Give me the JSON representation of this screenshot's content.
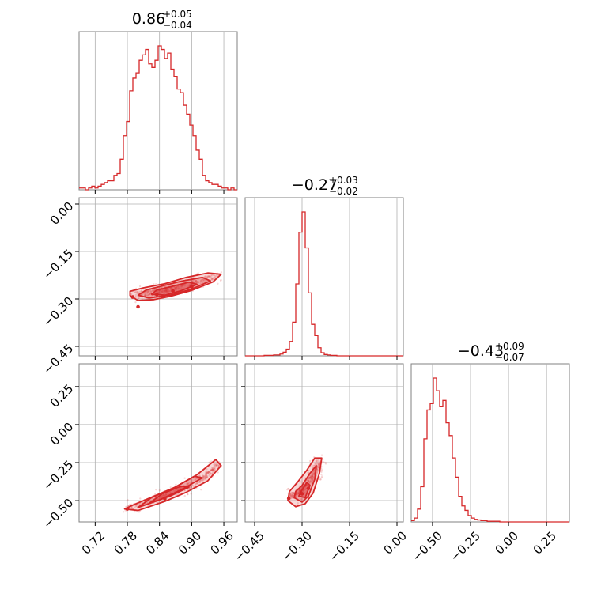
{
  "chart_data": {
    "type": "corner",
    "color": "#d62728",
    "grid": true,
    "params": [
      {
        "median": "0.86",
        "err_plus": "+0.05",
        "err_minus": "−0.04",
        "range": [
          0.69,
          0.985
        ],
        "ticks": [
          0.72,
          0.78,
          0.84,
          0.9,
          0.96
        ],
        "tick_labels": [
          "0.72",
          "0.78",
          "0.84",
          "0.90",
          "0.96"
        ],
        "hist_bins": [
          0.69,
          0.6959,
          0.7018,
          0.7077,
          0.7136,
          0.7195,
          0.7254,
          0.7313,
          0.7372,
          0.7431,
          0.749,
          0.7549,
          0.7608,
          0.7667,
          0.7726,
          0.7785,
          0.7844,
          0.7903,
          0.7962,
          0.8021,
          0.808,
          0.8139,
          0.8198,
          0.8257,
          0.8316,
          0.8375,
          0.8434,
          0.8493,
          0.8552,
          0.8611,
          0.867,
          0.8729,
          0.8788,
          0.8847,
          0.8906,
          0.8965,
          0.9024,
          0.9083,
          0.9142,
          0.9201,
          0.926,
          0.9319,
          0.9378,
          0.9437,
          0.9496,
          0.9555,
          0.9614,
          0.9673,
          0.9732,
          0.9791,
          0.985
        ],
        "hist_counts": [
          1,
          1,
          0,
          1,
          2,
          1,
          2,
          3,
          4,
          5,
          5,
          8,
          9,
          17,
          30,
          38,
          55,
          62,
          65,
          72,
          75,
          78,
          70,
          68,
          72,
          80,
          78,
          73,
          76,
          67,
          63,
          56,
          54,
          47,
          42,
          36,
          30,
          22,
          17,
          8,
          5,
          4,
          3,
          3,
          2,
          1,
          1,
          0,
          1,
          0
        ]
      },
      {
        "median": "−0.27",
        "err_plus": "+0.03",
        "err_minus": "−0.02",
        "range": [
          -0.48,
          0.02
        ],
        "ticks": [
          -0.45,
          -0.3,
          -0.15,
          0.0
        ],
        "tick_labels": [
          "−0.45",
          "−0.30",
          "−0.15",
          "0.00"
        ],
        "hist_bins": [
          -0.48,
          -0.47,
          -0.46,
          -0.45,
          -0.44,
          -0.43,
          -0.42,
          -0.41,
          -0.4,
          -0.39,
          -0.38,
          -0.37,
          -0.36,
          -0.35,
          -0.34,
          -0.33,
          -0.32,
          -0.31,
          -0.3,
          -0.29,
          -0.28,
          -0.27,
          -0.26,
          -0.25,
          -0.24,
          -0.23,
          -0.22,
          -0.21,
          -0.2,
          -0.19,
          -0.18,
          -0.17,
          -0.16,
          -0.15,
          -0.14,
          -0.13,
          -0.12,
          -0.11,
          -0.1,
          -0.09,
          -0.08,
          -0.07,
          -0.06,
          -0.05,
          -0.04,
          -0.03,
          -0.02,
          -0.01,
          0.0,
          0.01,
          0.02
        ],
        "hist_counts": [
          0,
          0,
          0,
          0,
          0,
          0,
          1,
          1,
          1,
          2,
          2,
          4,
          8,
          15,
          32,
          75,
          160,
          275,
          320,
          240,
          140,
          70,
          45,
          18,
          7,
          3,
          2,
          1,
          1,
          0,
          0,
          0,
          0,
          0,
          0,
          0,
          0,
          0,
          0,
          0,
          0,
          0,
          0,
          0,
          0,
          0,
          0,
          0,
          0,
          0
        ]
      },
      {
        "median": "−0.43",
        "err_plus": "+0.09",
        "err_minus": "−0.07",
        "range": [
          -0.64,
          0.4
        ],
        "ticks": [
          -0.5,
          -0.25,
          0.0,
          0.25
        ],
        "tick_labels": [
          "−0.50",
          "−0.25",
          "0.00",
          "0.25"
        ],
        "hist_bins": [
          -0.64,
          -0.6192,
          -0.5984,
          -0.5776,
          -0.5568,
          -0.536,
          -0.5152,
          -0.4944,
          -0.4736,
          -0.4528,
          -0.432,
          -0.4112,
          -0.3904,
          -0.3696,
          -0.3488,
          -0.328,
          -0.3072,
          -0.2864,
          -0.2656,
          -0.2448,
          -0.224,
          -0.2032,
          -0.1824,
          -0.1616,
          -0.1408,
          -0.12,
          -0.0992,
          -0.0784,
          -0.0576,
          -0.0368,
          -0.016,
          0.0048,
          0.0256,
          0.0464,
          0.0672,
          0.088,
          0.1088,
          0.1296,
          0.1504,
          0.1712,
          0.192,
          0.2128,
          0.2336,
          0.2544,
          0.2752,
          0.296,
          0.3168,
          0.3376,
          0.3584,
          0.3792,
          0.4
        ],
        "hist_counts": [
          2,
          6,
          20,
          55,
          130,
          175,
          185,
          225,
          205,
          180,
          190,
          155,
          135,
          100,
          70,
          40,
          25,
          18,
          10,
          6,
          4,
          3,
          2,
          2,
          1,
          1,
          1,
          1,
          0,
          0,
          0,
          0,
          0,
          0,
          0,
          0,
          0,
          0,
          0,
          0,
          0,
          0,
          0,
          0,
          0,
          0,
          0,
          0,
          0,
          0
        ]
      }
    ],
    "pairs": [
      {
        "x_param": 0,
        "y_param": 1,
        "center_line": [
          [
            0.79,
            -0.289
          ],
          [
            0.84,
            -0.275
          ],
          [
            0.88,
            -0.262
          ],
          [
            0.95,
            -0.226
          ]
        ],
        "contours": [
          [
            [
              0.785,
              -0.289
            ],
            [
              0.8,
              -0.305
            ],
            [
              0.83,
              -0.302
            ],
            [
              0.86,
              -0.292
            ],
            [
              0.9,
              -0.273
            ],
            [
              0.94,
              -0.246
            ],
            [
              0.955,
              -0.222
            ],
            [
              0.93,
              -0.218
            ],
            [
              0.89,
              -0.232
            ],
            [
              0.85,
              -0.252
            ],
            [
              0.81,
              -0.265
            ],
            [
              0.785,
              -0.276
            ]
          ],
          [
            [
              0.8,
              -0.288
            ],
            [
              0.82,
              -0.297
            ],
            [
              0.86,
              -0.288
            ],
            [
              0.9,
              -0.269
            ],
            [
              0.935,
              -0.243
            ],
            [
              0.92,
              -0.232
            ],
            [
              0.88,
              -0.244
            ],
            [
              0.845,
              -0.259
            ],
            [
              0.815,
              -0.272
            ]
          ],
          [
            [
              0.825,
              -0.285
            ],
            [
              0.85,
              -0.288
            ],
            [
              0.88,
              -0.274
            ],
            [
              0.91,
              -0.254
            ],
            [
              0.895,
              -0.247
            ],
            [
              0.86,
              -0.262
            ],
            [
              0.835,
              -0.272
            ]
          ]
        ],
        "dots": [
          [
            0.79,
            -0.294
          ],
          [
            0.8,
            -0.325
          ],
          [
            0.835,
            -0.286
          ],
          [
            0.865,
            -0.275
          ],
          [
            0.9,
            -0.262
          ]
        ]
      },
      {
        "x_param": 0,
        "y_param": 2,
        "center_line": [
          [
            0.78,
            -0.548
          ],
          [
            0.83,
            -0.495
          ],
          [
            0.88,
            -0.428
          ],
          [
            0.92,
            -0.36
          ],
          [
            0.95,
            -0.255
          ]
        ],
        "contours": [
          [
            [
              0.775,
              -0.555
            ],
            [
              0.8,
              -0.565
            ],
            [
              0.85,
              -0.505
            ],
            [
              0.89,
              -0.445
            ],
            [
              0.93,
              -0.37
            ],
            [
              0.955,
              -0.27
            ],
            [
              0.945,
              -0.23
            ],
            [
              0.91,
              -0.33
            ],
            [
              0.87,
              -0.41
            ],
            [
              0.83,
              -0.47
            ],
            [
              0.79,
              -0.53
            ]
          ],
          [
            [
              0.8,
              -0.545
            ],
            [
              0.84,
              -0.495
            ],
            [
              0.88,
              -0.43
            ],
            [
              0.92,
              -0.35
            ],
            [
              0.905,
              -0.34
            ],
            [
              0.865,
              -0.42
            ],
            [
              0.825,
              -0.48
            ]
          ],
          [
            [
              0.82,
              -0.52
            ],
            [
              0.86,
              -0.47
            ],
            [
              0.895,
              -0.41
            ],
            [
              0.88,
              -0.405
            ],
            [
              0.845,
              -0.455
            ]
          ]
        ],
        "dots": [
          [
            0.78,
            -0.555
          ],
          [
            0.85,
            -0.488
          ],
          [
            0.89,
            -0.415
          ]
        ]
      },
      {
        "x_param": 1,
        "y_param": 2,
        "center_line": [
          [
            -0.335,
            -0.475
          ],
          [
            -0.3,
            -0.43
          ],
          [
            -0.265,
            -0.33
          ],
          [
            -0.245,
            -0.24
          ]
        ],
        "contours": [
          [
            [
              -0.345,
              -0.5
            ],
            [
              -0.32,
              -0.54
            ],
            [
              -0.29,
              -0.52
            ],
            [
              -0.265,
              -0.45
            ],
            [
              -0.245,
              -0.32
            ],
            [
              -0.238,
              -0.22
            ],
            [
              -0.26,
              -0.22
            ],
            [
              -0.285,
              -0.3
            ],
            [
              -0.315,
              -0.38
            ],
            [
              -0.34,
              -0.44
            ]
          ],
          [
            [
              -0.325,
              -0.48
            ],
            [
              -0.3,
              -0.51
            ],
            [
              -0.28,
              -0.47
            ],
            [
              -0.26,
              -0.36
            ],
            [
              -0.255,
              -0.27
            ],
            [
              -0.275,
              -0.32
            ],
            [
              -0.3,
              -0.4
            ],
            [
              -0.32,
              -0.44
            ]
          ],
          [
            [
              -0.31,
              -0.47
            ],
            [
              -0.29,
              -0.48
            ],
            [
              -0.275,
              -0.4
            ],
            [
              -0.285,
              -0.38
            ],
            [
              -0.3,
              -0.43
            ]
          ]
        ],
        "dots": [
          [
            -0.342,
            -0.485
          ],
          [
            -0.3,
            -0.455
          ],
          [
            -0.28,
            -0.42
          ]
        ]
      }
    ]
  }
}
